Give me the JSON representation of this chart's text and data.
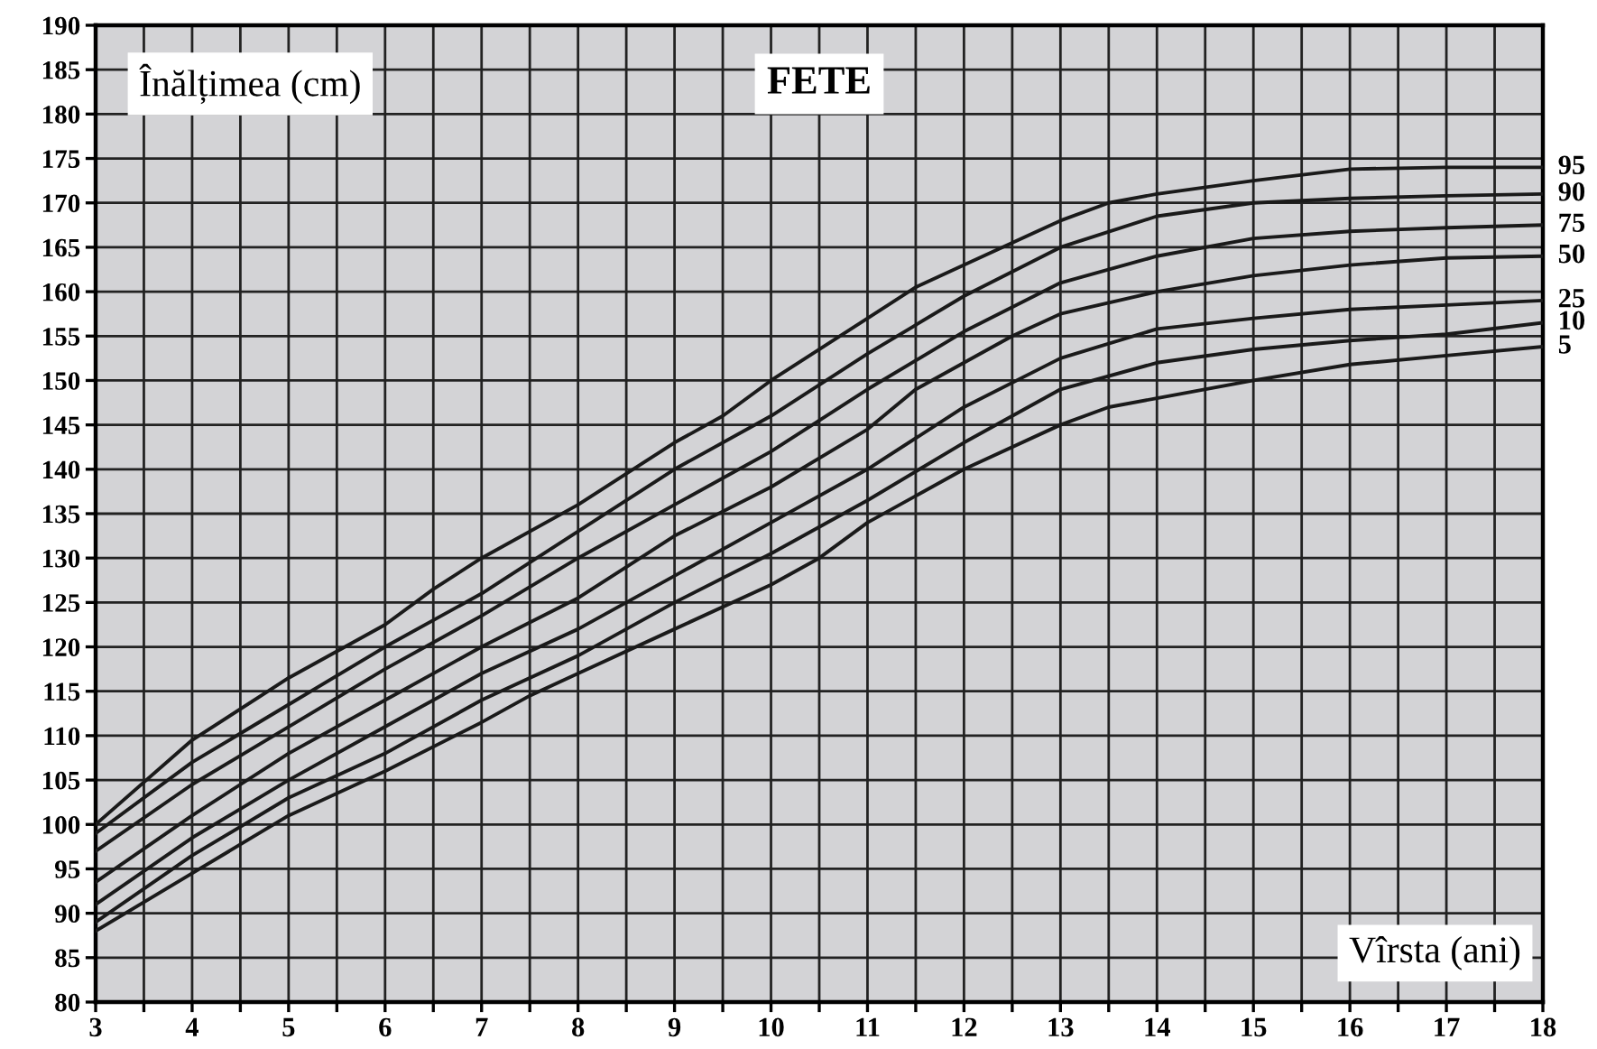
{
  "chart_data": {
    "type": "line",
    "title": "FETE",
    "xlabel": "Vîrsta (ani)",
    "ylabel": "Înălțimea (cm)",
    "xlim": [
      3,
      18
    ],
    "ylim": [
      80,
      190
    ],
    "xticks": [
      3,
      {
        "value": 3.5,
        "label": null
      },
      4,
      {
        "value": 4.5,
        "label": null
      },
      5,
      {
        "value": 5.5,
        "label": null
      },
      6,
      {
        "value": 6.5,
        "label": null
      },
      7,
      {
        "value": 7.5,
        "label": null
      },
      8,
      {
        "value": 8.5,
        "label": null
      },
      9,
      {
        "value": 9.5,
        "label": null
      },
      10,
      {
        "value": 10.5,
        "label": null
      },
      11,
      {
        "value": 11.5,
        "label": null
      },
      12,
      {
        "value": 12.5,
        "label": null
      },
      13,
      {
        "value": 13.5,
        "label": null
      },
      14,
      {
        "value": 14.5,
        "label": null
      },
      15,
      {
        "value": 15.5,
        "label": null
      },
      16,
      {
        "value": 16.5,
        "label": null
      },
      17,
      {
        "value": 17.5,
        "label": null
      },
      18
    ],
    "yticks": [
      80,
      85,
      90,
      95,
      100,
      105,
      110,
      115,
      120,
      125,
      130,
      135,
      140,
      145,
      150,
      155,
      160,
      165,
      170,
      175,
      180,
      185,
      190
    ],
    "grid": true,
    "legend": false,
    "marker": "none",
    "line_style": "solid",
    "series": [
      {
        "name": "95",
        "color": "#1a1a1a",
        "x": [
          3,
          4,
          5,
          6,
          6.5,
          7,
          8,
          9,
          9.5,
          10,
          11,
          11.5,
          12,
          13,
          13.5,
          14,
          15,
          16,
          17,
          18
        ],
        "values": [
          100,
          109.5,
          116.5,
          122.5,
          126.5,
          130,
          136,
          143,
          146,
          150,
          157,
          160.5,
          163,
          168,
          170,
          171,
          172.5,
          173.8,
          174,
          174
        ]
      },
      {
        "name": "90",
        "color": "#1a1a1a",
        "x": [
          3,
          4,
          5,
          6,
          7,
          8,
          9,
          10,
          11,
          12,
          13,
          14,
          15,
          16,
          17,
          18
        ],
        "values": [
          99,
          107,
          113.5,
          120,
          126,
          133,
          140,
          146,
          153,
          159.5,
          165,
          168.5,
          170,
          170.5,
          170.8,
          171
        ]
      },
      {
        "name": "75",
        "color": "#1a1a1a",
        "x": [
          3,
          4,
          5,
          6,
          7,
          8,
          9,
          10,
          11,
          12,
          13,
          14,
          15,
          16,
          17,
          18
        ],
        "values": [
          97,
          104.5,
          111,
          117.5,
          123.5,
          130,
          136,
          142,
          149,
          155.5,
          161,
          164,
          166,
          166.8,
          167.2,
          167.5
        ]
      },
      {
        "name": "50",
        "color": "#1a1a1a",
        "x": [
          3,
          4,
          5,
          6,
          7,
          8,
          8.5,
          9,
          10,
          11,
          11.5,
          12,
          12.5,
          13,
          14,
          15,
          16,
          17,
          18
        ],
        "values": [
          93.5,
          101,
          108,
          114,
          120,
          125.5,
          129,
          132.5,
          138,
          144.5,
          149,
          152,
          155,
          157.5,
          160,
          161.8,
          163,
          163.8,
          164
        ]
      },
      {
        "name": "25",
        "color": "#1a1a1a",
        "x": [
          3,
          4,
          5,
          6,
          7,
          8,
          9,
          10,
          11,
          12,
          13,
          14,
          15,
          16,
          17,
          18
        ],
        "values": [
          91,
          98.5,
          105,
          111,
          117,
          122,
          128,
          134,
          140,
          147,
          152.5,
          155.8,
          157,
          158,
          158.5,
          159
        ]
      },
      {
        "name": "10",
        "color": "#1a1a1a",
        "x": [
          3,
          4,
          5,
          6,
          7,
          8,
          9,
          10,
          11,
          12,
          13,
          14,
          15,
          16,
          17,
          18
        ],
        "values": [
          89,
          96.5,
          103,
          108,
          114,
          119,
          125,
          130.5,
          136.5,
          143,
          149,
          152,
          153.5,
          154.5,
          155.2,
          156.5
        ]
      },
      {
        "name": "5",
        "color": "#1a1a1a",
        "x": [
          3,
          4,
          5,
          6,
          7,
          7.5,
          8,
          9,
          10,
          10.5,
          11,
          12,
          13,
          13.5,
          14,
          15,
          16,
          17,
          18
        ],
        "values": [
          88,
          94.5,
          101,
          106,
          111.5,
          114.5,
          117,
          122,
          127,
          130,
          134,
          140,
          145,
          147,
          148,
          150,
          151.8,
          152.8,
          153.8
        ]
      }
    ]
  }
}
